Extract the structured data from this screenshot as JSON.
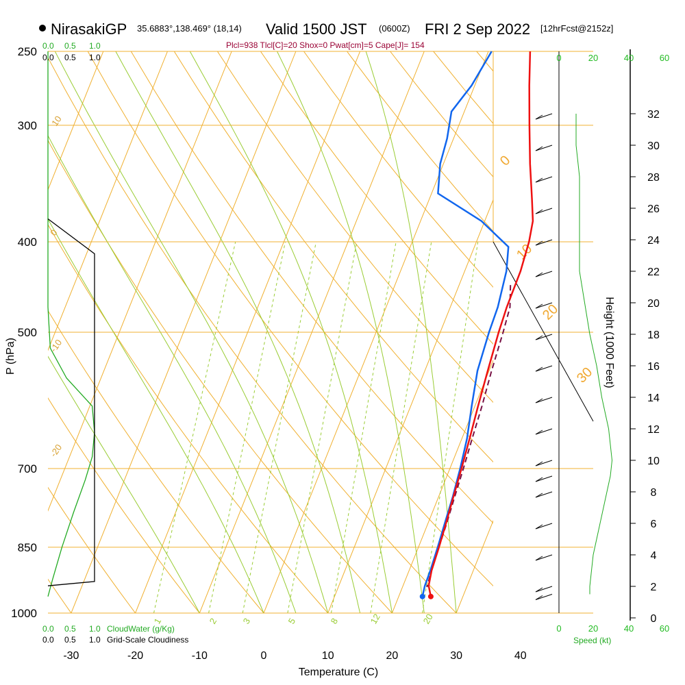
{
  "header": {
    "station": "NirasakiGP",
    "coords": "35.6883°,138.469° (18,14)",
    "valid": "Valid 1500 JST",
    "zulu": "(0600Z)",
    "date": "FRI 2 Sep 2022",
    "fcst": "[12hrFcst@2152z]",
    "indices": "Plcl=938 Tlcl[C]=20 Shox=0 Pwat[cm]=5 Cape[J]= 154"
  },
  "axis_titles": {
    "y": "P (hPa)",
    "x": "Temperature (C)",
    "height": "Height (1000 Feet)"
  },
  "cloud_labels": {
    "cloudwater": "CloudWater (g/Kg)",
    "cloudiness": "Grid-Scale Cloudiness",
    "speed": "Speed (kt)",
    "scale_ticks": [
      "0.0",
      "0.5",
      "1.0"
    ],
    "speed_ticks": [
      "0",
      "20",
      "40",
      "60"
    ]
  },
  "colors": {
    "isotherm": "#f0b030",
    "isobar": "#f0b030",
    "dry_adiabat": "#f0b030",
    "moist_adiabat": "#99cc33",
    "mixing_ratio": "#99cc33",
    "temperature": "#ee1111",
    "dewpoint": "#1166ee",
    "parcel": "#771144",
    "cloudwater": "#22aa22",
    "cloudiness": "#000000",
    "wind_speed": "#22aa22"
  },
  "chart_data": {
    "type": "line",
    "title": "NirasakiGP 35.6883°,138.469° (18,14)  Valid 1500 JST (0600Z) FRI 2 Sep 2022 [12hrFcst@2152z]",
    "xlabel": "Temperature (C)",
    "ylabel": "P (hPa)",
    "skew": true,
    "y_scale": "log",
    "xlim": [
      -35,
      36
    ],
    "ylim": [
      1000,
      250
    ],
    "pressure_ticks": [
      250,
      300,
      400,
      500,
      700,
      850,
      1000
    ],
    "temperature_ticks": [
      -30,
      -20,
      -10,
      0,
      10,
      20,
      30,
      40
    ],
    "height_ticks_kft": [
      0,
      2,
      4,
      6,
      8,
      10,
      12,
      14,
      16,
      18,
      20,
      22,
      24,
      26,
      28,
      30,
      32
    ],
    "dry_adiabat_labels": [
      "10",
      "0",
      "-10",
      "-20",
      "0",
      "10",
      "20",
      "30"
    ],
    "mixing_ratio_labels": [
      "1",
      "2",
      "3",
      "5",
      "8",
      "12",
      "20"
    ],
    "grid": true,
    "series": [
      {
        "name": "Temperature",
        "pressure": [
          250,
          272,
          300,
          330,
          360,
          380,
          400,
          430,
          470,
          500,
          550,
          600,
          650,
          700,
          750,
          800,
          850,
          900,
          935,
          960
        ],
        "values": [
          6.5,
          8.5,
          11,
          13.5,
          16,
          17.5,
          18.2,
          18.7,
          18.8,
          19.1,
          19.8,
          20.5,
          21.2,
          21.8,
          22.3,
          22.8,
          23.2,
          23.5,
          24,
          25
        ]
      },
      {
        "name": "Dewpoint",
        "pressure": [
          250,
          272,
          290,
          310,
          330,
          355,
          380,
          405,
          430,
          470,
          500,
          550,
          600,
          650,
          700,
          750,
          800,
          850,
          900,
          935,
          960
        ],
        "values": [
          0.5,
          -0.5,
          -2,
          -1,
          -0.5,
          1,
          9.5,
          15.3,
          16.5,
          17.4,
          17.6,
          18.2,
          19.5,
          20.8,
          21.6,
          22.2,
          22.6,
          23,
          23.3,
          23.4,
          23.7
        ]
      },
      {
        "name": "Parcel",
        "pressure": [
          445,
          470,
          500,
          550,
          600,
          650,
          700,
          750,
          800,
          850,
          900,
          938
        ],
        "values": [
          18,
          19.3,
          19.8,
          20.4,
          21.1,
          21.6,
          22.1,
          22.5,
          22.9,
          23.2,
          23.5,
          23.8
        ]
      }
    ],
    "cloudwater_gkg": {
      "pressure": [
        250,
        400,
        470,
        520,
        560,
        600,
        640,
        680,
        720,
        780,
        850,
        920,
        960
      ],
      "values": [
        0.0,
        0.0,
        0.0,
        0.05,
        0.4,
        0.95,
        1.0,
        0.95,
        0.8,
        0.55,
        0.3,
        0.1,
        0.0
      ]
    },
    "cloudiness": {
      "pressure": [
        378,
        412,
        925,
        935
      ],
      "values": [
        0.0,
        1.0,
        1.0,
        0.0
      ]
    },
    "wind_profile": {
      "height_kft": [
        32,
        30,
        28,
        26,
        24,
        22,
        20,
        18,
        16,
        14,
        12,
        10,
        9,
        8,
        6,
        4,
        2,
        1.5
      ],
      "speed_kt": [
        10,
        10,
        12,
        12,
        12,
        12,
        15,
        18,
        22,
        25,
        29,
        31,
        30,
        28,
        24,
        20,
        18,
        18
      ]
    }
  }
}
